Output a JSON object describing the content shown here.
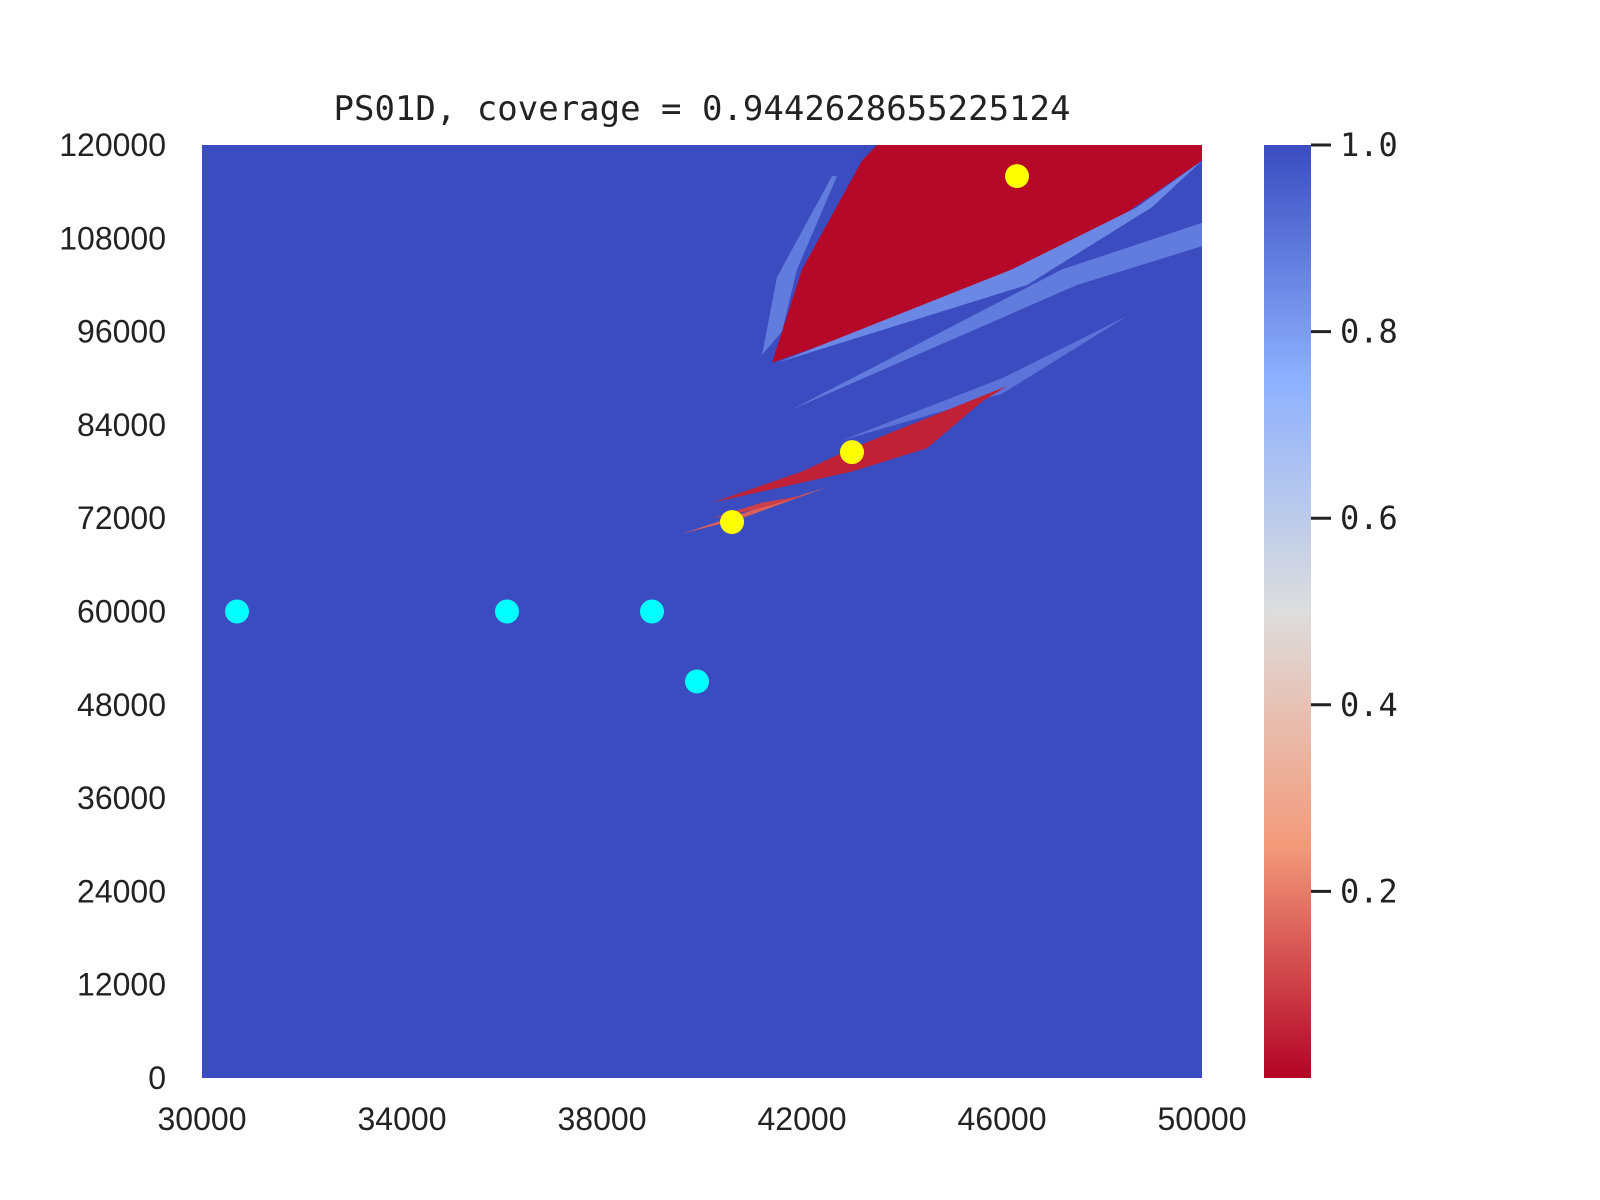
{
  "chart_data": {
    "type": "heatmap",
    "title": "PS01D, coverage = 0.9442628655225124",
    "xlabel": "",
    "ylabel": "",
    "xlim": [
      30000,
      50000
    ],
    "ylim": [
      0,
      120000
    ],
    "x_ticks": [
      "30000",
      "34000",
      "38000",
      "42000",
      "46000",
      "50000"
    ],
    "y_ticks": [
      "0",
      "12000",
      "24000",
      "36000",
      "48000",
      "60000",
      "72000",
      "84000",
      "96000",
      "108000",
      "120000"
    ],
    "colormap": "coolwarm_r",
    "background_value": 1.0,
    "colorbar": {
      "range": [
        0.0,
        1.0
      ],
      "ticks": [
        "0.2",
        "0.4",
        "0.6",
        "0.8",
        "1.0"
      ]
    },
    "regions": [
      {
        "value": 0.01,
        "polygon": [
          [
            41.4,
            92
          ],
          [
            42.0,
            104
          ],
          [
            43.2,
            118
          ],
          [
            43.5,
            120
          ],
          [
            50.0,
            120
          ],
          [
            50.0,
            118
          ],
          [
            48.2,
            110
          ],
          [
            45.8,
            102
          ]
        ]
      },
      {
        "value": 0.88,
        "polygon": [
          [
            41.2,
            93
          ],
          [
            41.5,
            103
          ],
          [
            42.6,
            116
          ],
          [
            42.7,
            116
          ],
          [
            41.9,
            104
          ],
          [
            41.6,
            96
          ]
        ]
      },
      {
        "value": 0.85,
        "polygon": [
          [
            41.5,
            92
          ],
          [
            46.2,
            104
          ],
          [
            48.7,
            112
          ],
          [
            50.0,
            118
          ],
          [
            49.0,
            112
          ],
          [
            46.5,
            102
          ]
        ]
      },
      {
        "value": 0.88,
        "polygon": [
          [
            41.8,
            86
          ],
          [
            47.2,
            104
          ],
          [
            50.0,
            110
          ],
          [
            50.0,
            107
          ],
          [
            47.5,
            102
          ]
        ]
      },
      {
        "value": 0.9,
        "polygon": [
          [
            42.8,
            82
          ],
          [
            46.0,
            90
          ],
          [
            48.5,
            98
          ],
          [
            46.0,
            88
          ]
        ]
      },
      {
        "value": 0.05,
        "polygon": [
          [
            40.2,
            74
          ],
          [
            42.0,
            78
          ],
          [
            43.0,
            81
          ],
          [
            46.1,
            89
          ],
          [
            45.6,
            87
          ],
          [
            44.5,
            81
          ],
          [
            43.0,
            78
          ]
        ]
      },
      {
        "value": 0.15,
        "polygon": [
          [
            39.6,
            70
          ],
          [
            41.0,
            73
          ],
          [
            42.5,
            76
          ],
          [
            40.8,
            72
          ]
        ]
      },
      {
        "value": 0.1,
        "polygon": [
          [
            40.2,
            72
          ],
          [
            41.2,
            74
          ],
          [
            42.1,
            75
          ],
          [
            41.0,
            73
          ]
        ]
      }
    ],
    "markers": [
      {
        "color": "#00ffff",
        "points": [
          [
            30700,
            60000
          ],
          [
            36100,
            60000
          ],
          [
            39000,
            60000
          ],
          [
            39900,
            51000
          ]
        ]
      },
      {
        "color": "#ffff00",
        "points": [
          [
            46300,
            116000
          ],
          [
            43000,
            80500
          ],
          [
            40600,
            71500
          ]
        ]
      }
    ]
  }
}
